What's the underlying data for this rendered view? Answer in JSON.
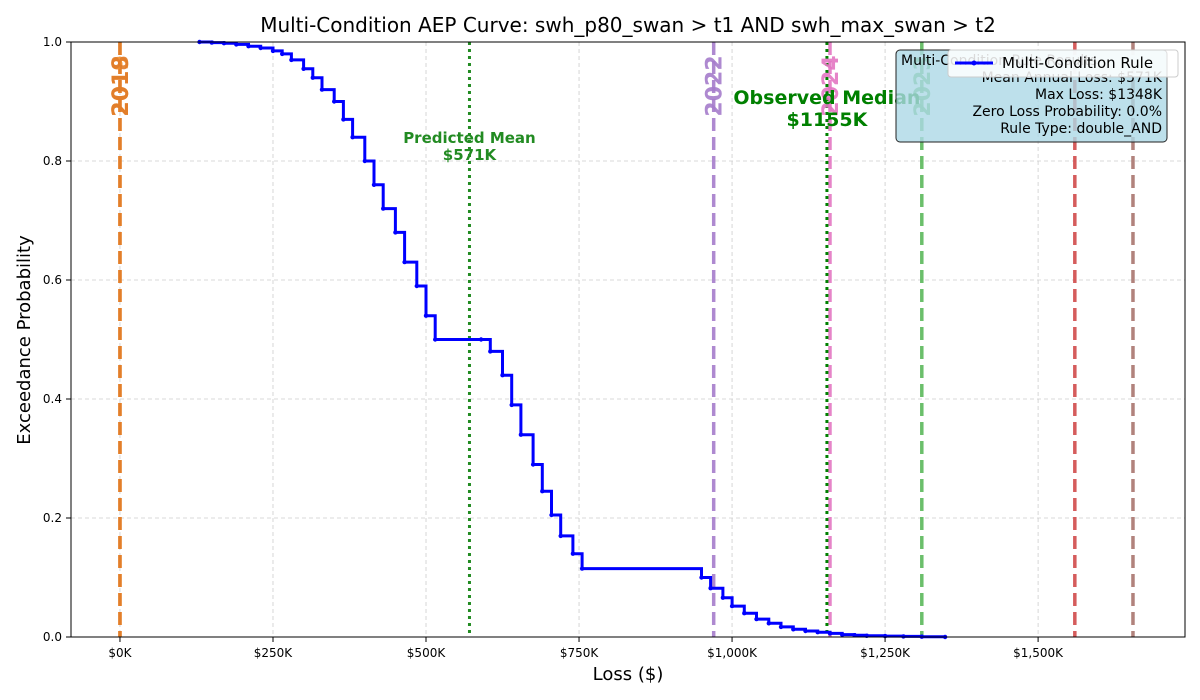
{
  "chart_data": {
    "type": "line",
    "title": "Multi-Condition AEP Curve: swh_p80_swan > t1 AND swh_max_swan > t2",
    "xlabel": "Loss ($)",
    "ylabel": "Exceedance Probability",
    "xlim": [
      -80000,
      1740000
    ],
    "ylim": [
      0,
      1
    ],
    "grid": true,
    "x_ticks": [
      {
        "value": 0,
        "label": "$0K"
      },
      {
        "value": 250000,
        "label": "$250K"
      },
      {
        "value": 500000,
        "label": "$500K"
      },
      {
        "value": 750000,
        "label": "$750K"
      },
      {
        "value": 1000000,
        "label": "$1,000K"
      },
      {
        "value": 1250000,
        "label": "$1,250K"
      },
      {
        "value": 1500000,
        "label": "$1,500K"
      }
    ],
    "y_ticks": [
      {
        "value": 0,
        "label": "0.0"
      },
      {
        "value": 0.2,
        "label": "0.2"
      },
      {
        "value": 0.4,
        "label": "0.4"
      },
      {
        "value": 0.6,
        "label": "0.6"
      },
      {
        "value": 0.8,
        "label": "0.8"
      },
      {
        "value": 1.0,
        "label": "1.0"
      }
    ],
    "series": [
      {
        "name": "Multi-Condition Rule",
        "color": "#0000ff",
        "style": "step",
        "x": [
          130000,
          150000,
          170000,
          190000,
          210000,
          230000,
          250000,
          265000,
          280000,
          300000,
          315000,
          330000,
          350000,
          365000,
          380000,
          400000,
          415000,
          430000,
          450000,
          465000,
          485000,
          500000,
          515000,
          590000,
          605000,
          625000,
          640000,
          655000,
          675000,
          690000,
          705000,
          720000,
          740000,
          755000,
          950000,
          965000,
          985000,
          1000000,
          1020000,
          1040000,
          1060000,
          1080000,
          1100000,
          1120000,
          1140000,
          1160000,
          1180000,
          1200000,
          1220000,
          1250000,
          1280000,
          1310000,
          1348000
        ],
        "y": [
          1.0,
          0.999,
          0.998,
          0.996,
          0.993,
          0.99,
          0.985,
          0.98,
          0.97,
          0.955,
          0.94,
          0.92,
          0.9,
          0.87,
          0.84,
          0.8,
          0.76,
          0.72,
          0.68,
          0.63,
          0.59,
          0.54,
          0.5,
          0.5,
          0.48,
          0.44,
          0.39,
          0.34,
          0.29,
          0.245,
          0.205,
          0.17,
          0.14,
          0.115,
          0.1,
          0.082,
          0.066,
          0.052,
          0.04,
          0.03,
          0.023,
          0.017,
          0.013,
          0.01,
          0.008,
          0.006,
          0.004,
          0.003,
          0.002,
          0.0015,
          0.001,
          0.0005,
          0.0
        ]
      }
    ],
    "vertical_lines": [
      {
        "x": 0,
        "label": "2019",
        "color": "#f28e2b",
        "style": "dashed"
      },
      {
        "x": 0,
        "label": "2018",
        "color": "#e07b28",
        "style": "dashed"
      },
      {
        "x": 970000,
        "label": "2022",
        "color": "#a57ccb",
        "style": "dashed"
      },
      {
        "x": 1160000,
        "label": "2024",
        "color": "#e377c2",
        "style": "dashed"
      },
      {
        "x": 1310000,
        "label": "2023",
        "color": "#5bb85b",
        "style": "dashed"
      },
      {
        "x": 1560000,
        "label": "",
        "color": "#d04a4a",
        "style": "dashed"
      },
      {
        "x": 1655000,
        "label": "",
        "color": "#a9746e",
        "style": "dashed"
      }
    ],
    "reference_lines": [
      {
        "x": 571000,
        "label": "Predicted Mean",
        "value_label": "$571K",
        "color": "#228b22"
      },
      {
        "x": 1155000,
        "label": "Observed Median",
        "value_label": "$1155K",
        "color": "#008000"
      }
    ],
    "info_box": {
      "title": "Multi-Condition Rule Results",
      "lines": [
        "Mean Annual Loss: $571K",
        "Max Loss: $1348K",
        "Zero Loss Probability: 0.0%",
        "Rule Type: double_AND"
      ]
    },
    "legend": {
      "position": "top-right",
      "entries": [
        "Multi-Condition Rule"
      ]
    }
  }
}
